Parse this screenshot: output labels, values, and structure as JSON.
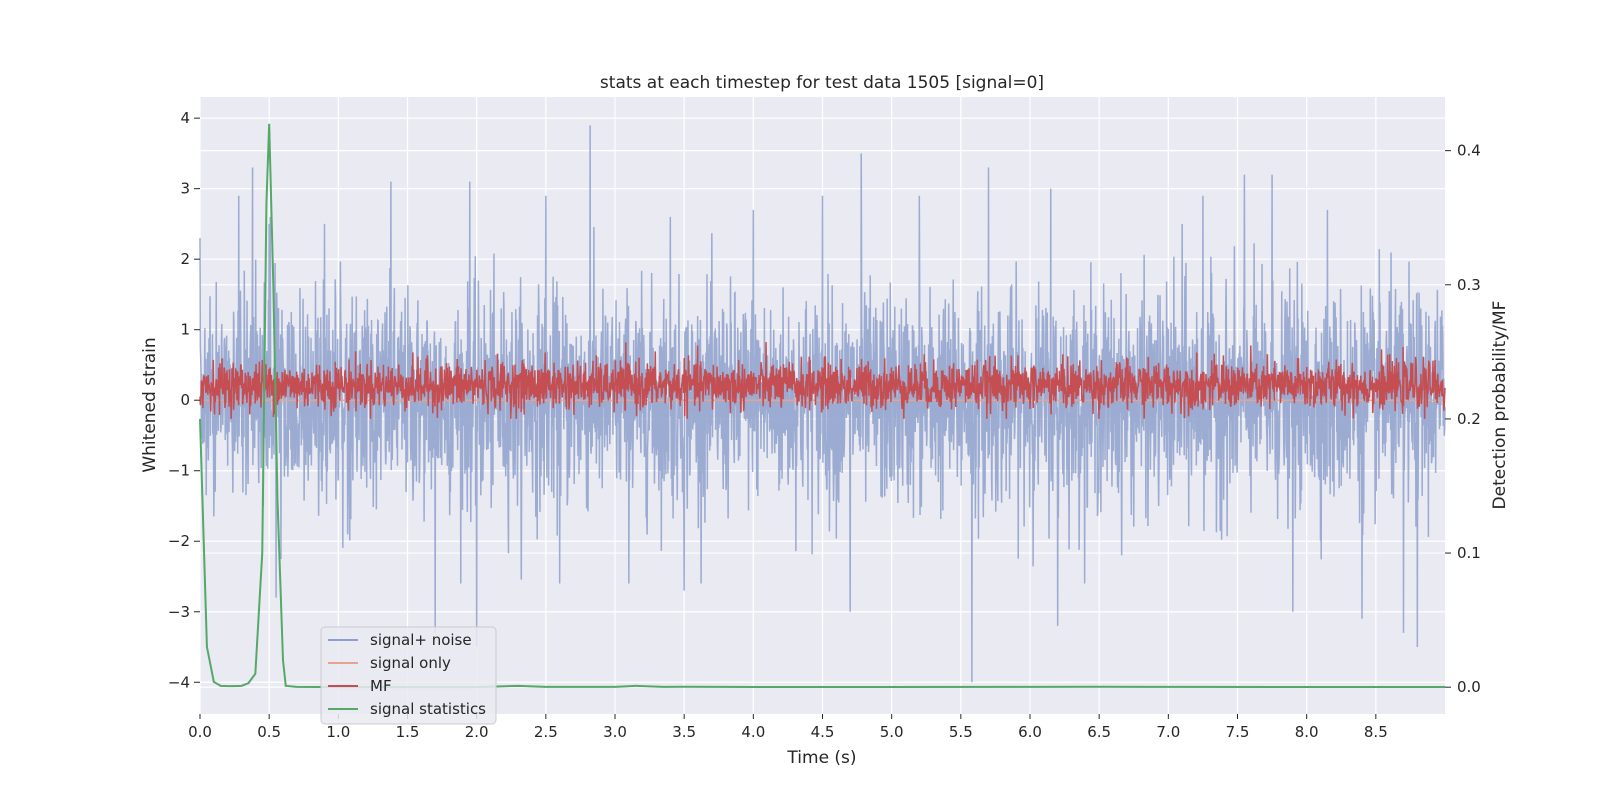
{
  "chart_data": {
    "type": "line",
    "title": "stats at each timestep for test data 1505 [signal=0]",
    "xlabel": "Time (s)",
    "ylabel_left": "Whitened strain",
    "ylabel_right": "Detection probability/MF",
    "xlim": [
      0.0,
      9.0
    ],
    "ylim_left": [
      -4.45,
      4.3
    ],
    "ylim_right": [
      -0.02,
      0.44
    ],
    "x_ticks": [
      0.0,
      0.5,
      1.0,
      1.5,
      2.0,
      2.5,
      3.0,
      3.5,
      4.0,
      4.5,
      5.0,
      5.5,
      6.0,
      6.5,
      7.0,
      7.5,
      8.0,
      8.5
    ],
    "x_tick_labels": [
      "0.0",
      "0.5",
      "1.0",
      "1.5",
      "2.0",
      "2.5",
      "3.0",
      "3.5",
      "4.0",
      "4.5",
      "5.0",
      "5.5",
      "6.0",
      "6.5",
      "7.0",
      "7.5",
      "8.0",
      "8.5"
    ],
    "y_left_ticks": [
      -4,
      -3,
      -2,
      -1,
      0,
      1,
      2,
      3,
      4
    ],
    "y_left_tick_labels": [
      "−4",
      "−3",
      "−2",
      "−1",
      "0",
      "1",
      "2",
      "3",
      "4"
    ],
    "y_right_ticks": [
      0.0,
      0.1,
      0.2,
      0.3,
      0.4
    ],
    "y_right_tick_labels": [
      "0.0",
      "0.1",
      "0.2",
      "0.3",
      "0.4"
    ],
    "grid": true,
    "legend_position": "lower-left",
    "series": [
      {
        "name": "signal+ noise",
        "axis": "left",
        "color": "#8da0cb",
        "style": "noise",
        "std": 0.75,
        "peaks": [
          [
            0.28,
            2.9
          ],
          [
            0.38,
            3.3
          ],
          [
            0.5,
            2.5
          ],
          [
            0.55,
            -2.8
          ],
          [
            0.9,
            2.5
          ],
          [
            1.38,
            3.1
          ],
          [
            1.7,
            -3.3
          ],
          [
            1.95,
            3.1
          ],
          [
            2.0,
            -3.5
          ],
          [
            2.5,
            2.9
          ],
          [
            2.6,
            -2.6
          ],
          [
            2.82,
            3.9
          ],
          [
            3.1,
            -2.6
          ],
          [
            3.4,
            2.6
          ],
          [
            3.5,
            -2.7
          ],
          [
            4.0,
            2.7
          ],
          [
            4.5,
            2.9
          ],
          [
            4.7,
            -3.0
          ],
          [
            4.78,
            3.5
          ],
          [
            5.2,
            2.9
          ],
          [
            5.58,
            -4.0
          ],
          [
            5.7,
            3.3
          ],
          [
            6.15,
            3.0
          ],
          [
            6.2,
            -3.2
          ],
          [
            7.1,
            2.5
          ],
          [
            7.25,
            2.9
          ],
          [
            7.55,
            3.2
          ],
          [
            7.75,
            3.2
          ],
          [
            7.9,
            -3.0
          ],
          [
            8.15,
            2.7
          ],
          [
            8.4,
            -3.1
          ],
          [
            8.7,
            -3.3
          ],
          [
            8.8,
            -3.5
          ]
        ]
      },
      {
        "name": "signal only",
        "axis": "left",
        "color": "#e8a38c",
        "style": "flat",
        "value": 0.0
      },
      {
        "name": "MF",
        "axis": "right",
        "color": "#c44e52",
        "style": "noise",
        "mean": 0.225,
        "std": 0.009,
        "min": 0.2,
        "max": 0.265
      },
      {
        "name": "signal statistics",
        "axis": "right",
        "color": "#55a868",
        "style": "line",
        "x": [
          0.0,
          0.05,
          0.1,
          0.15,
          0.2,
          0.25,
          0.3,
          0.35,
          0.4,
          0.45,
          0.48,
          0.5,
          0.53,
          0.56,
          0.6,
          0.62,
          0.7,
          1.0,
          2.0,
          2.3,
          2.5,
          3.0,
          3.15,
          3.35,
          3.5,
          4.0,
          5.0,
          6.0,
          6.5,
          7.0,
          8.0,
          9.0
        ],
        "y": [
          0.2,
          0.03,
          0.004,
          0.001,
          0.0008,
          0.0008,
          0.001,
          0.003,
          0.01,
          0.1,
          0.36,
          0.42,
          0.3,
          0.14,
          0.02,
          0.001,
          0.0002,
          0.0,
          0.0,
          0.001,
          0.0002,
          0.0002,
          0.001,
          0.0002,
          0.0003,
          0.0001,
          0.0001,
          0.0002,
          0.0003,
          0.0002,
          0.0001,
          0.0001
        ]
      }
    ]
  }
}
